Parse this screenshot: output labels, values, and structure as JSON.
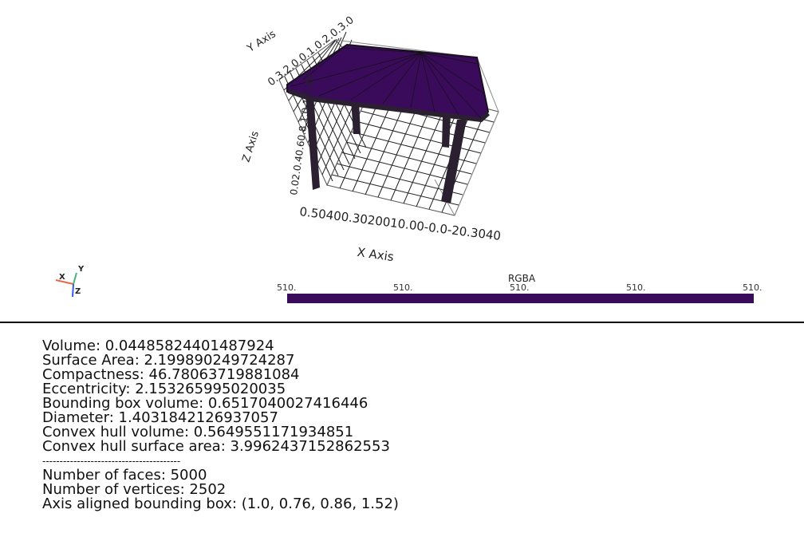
{
  "viewport": {
    "axes": {
      "x_label": "X Axis",
      "y_label": "Y Axis",
      "z_label": "Z Axis",
      "x_ticks_text": "0.50400.3020010.00-0.0-20.3040",
      "y_ticks_text": "0.3.2.0.0.1.0.2.0.3.0",
      "z_ticks_text": "0.02.0.40.60.8.1.0.1.2.40"
    },
    "orientation_widget": {
      "x": "X",
      "y": "Y",
      "z": "Z"
    },
    "colorbar": {
      "title": "RGBA",
      "ticks": [
        "510.",
        "510.",
        "510.",
        "510.",
        "510."
      ],
      "color": "#3a0b5a"
    },
    "mesh_color": "#3a0b5a"
  },
  "stats": {
    "volume": "Volume: 0.04485824401487924",
    "surface_area": "Surface Area: 2.199890249724287",
    "compactness": "Compactness: 46.78063719881084",
    "eccentricity": "Eccentricity: 2.153265995020035",
    "bbox_volume": "Bounding box volume: 0.6517040027416446",
    "diameter": "Diameter: 1.4031842126937057",
    "hull_volume": "Convex hull volume: 0.5649551171934851",
    "hull_area": "Convex hull surface area: 3.9962437152862553",
    "separator": "----------------------------------------",
    "faces": "Number of faces: 5000",
    "vertices": "Number of vertices: 2502",
    "aabb": "Axis aligned bounding box: (1.0, 0.76, 0.86, 1.52)"
  }
}
